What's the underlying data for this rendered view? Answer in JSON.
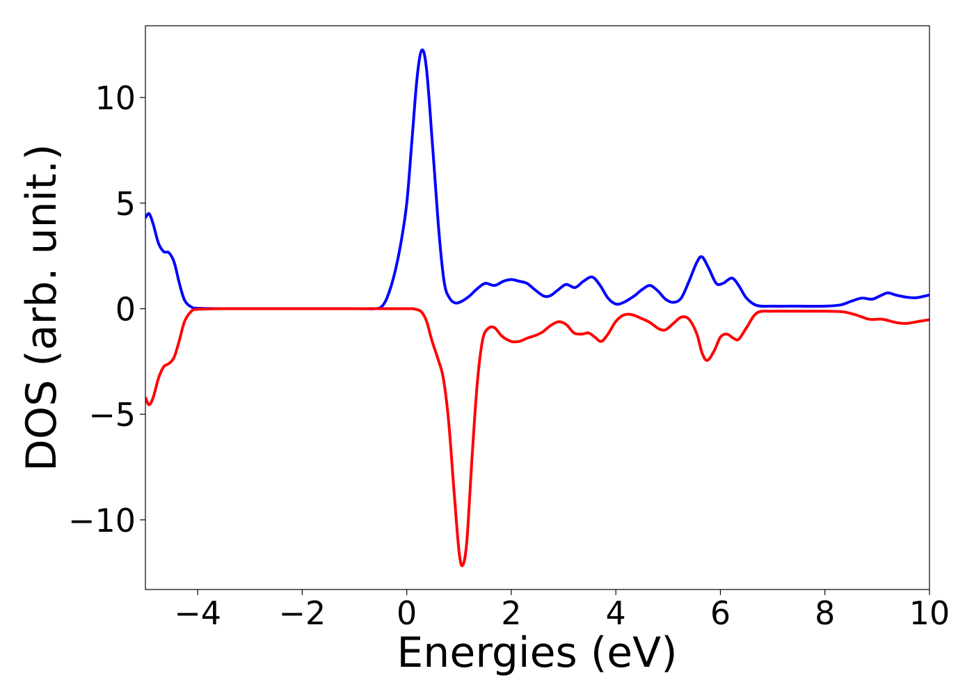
{
  "chart_data": {
    "type": "line",
    "title": "",
    "xlabel": "Energies (eV)",
    "ylabel": "DOS (arb. unit.)",
    "xlim": [
      -5,
      10
    ],
    "ylim": [
      -13.3,
      13.4
    ],
    "xticks": [
      -4,
      -2,
      0,
      2,
      4,
      6,
      8,
      10
    ],
    "yticks": [
      -10,
      -5,
      0,
      5,
      10
    ],
    "grid": false,
    "legend": "none",
    "series": [
      {
        "color": "#0000ff",
        "points": [
          [
            -5.0,
            4.3
          ],
          [
            -4.93,
            4.5
          ],
          [
            -4.85,
            4.0
          ],
          [
            -4.75,
            3.1
          ],
          [
            -4.65,
            2.7
          ],
          [
            -4.55,
            2.65
          ],
          [
            -4.45,
            2.2
          ],
          [
            -4.35,
            1.2
          ],
          [
            -4.25,
            0.4
          ],
          [
            -4.12,
            0.08
          ],
          [
            -4.0,
            0.02
          ],
          [
            -3.5,
            0.0
          ],
          [
            -2.0,
            0.0
          ],
          [
            -1.0,
            0.0
          ],
          [
            -0.6,
            0.0
          ],
          [
            -0.48,
            0.1
          ],
          [
            -0.38,
            0.5
          ],
          [
            -0.25,
            1.5
          ],
          [
            -0.12,
            3.0
          ],
          [
            0.0,
            5.0
          ],
          [
            0.1,
            8.0
          ],
          [
            0.2,
            11.0
          ],
          [
            0.29,
            12.25
          ],
          [
            0.38,
            11.3
          ],
          [
            0.5,
            7.5
          ],
          [
            0.62,
            3.5
          ],
          [
            0.72,
            1.2
          ],
          [
            0.82,
            0.5
          ],
          [
            0.93,
            0.27
          ],
          [
            1.05,
            0.35
          ],
          [
            1.2,
            0.6
          ],
          [
            1.35,
            0.95
          ],
          [
            1.5,
            1.2
          ],
          [
            1.68,
            1.1
          ],
          [
            1.85,
            1.3
          ],
          [
            2.0,
            1.38
          ],
          [
            2.15,
            1.3
          ],
          [
            2.3,
            1.2
          ],
          [
            2.45,
            0.9
          ],
          [
            2.62,
            0.6
          ],
          [
            2.75,
            0.62
          ],
          [
            2.9,
            0.9
          ],
          [
            3.05,
            1.15
          ],
          [
            3.22,
            1.0
          ],
          [
            3.38,
            1.3
          ],
          [
            3.55,
            1.5
          ],
          [
            3.7,
            1.1
          ],
          [
            3.85,
            0.5
          ],
          [
            4.0,
            0.22
          ],
          [
            4.15,
            0.3
          ],
          [
            4.35,
            0.6
          ],
          [
            4.5,
            0.9
          ],
          [
            4.65,
            1.1
          ],
          [
            4.8,
            0.85
          ],
          [
            4.95,
            0.45
          ],
          [
            5.1,
            0.3
          ],
          [
            5.25,
            0.5
          ],
          [
            5.4,
            1.3
          ],
          [
            5.55,
            2.2
          ],
          [
            5.65,
            2.45
          ],
          [
            5.78,
            1.9
          ],
          [
            5.92,
            1.2
          ],
          [
            6.05,
            1.2
          ],
          [
            6.22,
            1.45
          ],
          [
            6.35,
            1.1
          ],
          [
            6.5,
            0.5
          ],
          [
            6.7,
            0.15
          ],
          [
            7.0,
            0.12
          ],
          [
            7.5,
            0.12
          ],
          [
            8.0,
            0.12
          ],
          [
            8.3,
            0.18
          ],
          [
            8.5,
            0.35
          ],
          [
            8.7,
            0.5
          ],
          [
            8.9,
            0.45
          ],
          [
            9.05,
            0.6
          ],
          [
            9.2,
            0.75
          ],
          [
            9.35,
            0.65
          ],
          [
            9.55,
            0.55
          ],
          [
            9.75,
            0.52
          ],
          [
            10.0,
            0.65
          ]
        ]
      },
      {
        "color": "#ff0000",
        "points": [
          [
            -5.0,
            -4.2
          ],
          [
            -4.93,
            -4.55
          ],
          [
            -4.85,
            -4.2
          ],
          [
            -4.75,
            -3.3
          ],
          [
            -4.65,
            -2.75
          ],
          [
            -4.55,
            -2.6
          ],
          [
            -4.45,
            -2.3
          ],
          [
            -4.35,
            -1.5
          ],
          [
            -4.25,
            -0.6
          ],
          [
            -4.12,
            -0.12
          ],
          [
            -4.0,
            -0.03
          ],
          [
            -3.5,
            0.0
          ],
          [
            -2.0,
            0.0
          ],
          [
            -1.0,
            0.0
          ],
          [
            0.0,
            0.0
          ],
          [
            0.15,
            -0.02
          ],
          [
            0.28,
            -0.15
          ],
          [
            0.38,
            -0.6
          ],
          [
            0.48,
            -1.5
          ],
          [
            0.6,
            -2.4
          ],
          [
            0.7,
            -3.3
          ],
          [
            0.8,
            -5.3
          ],
          [
            0.9,
            -8.5
          ],
          [
            1.0,
            -11.5
          ],
          [
            1.07,
            -12.15
          ],
          [
            1.15,
            -11.0
          ],
          [
            1.25,
            -7.0
          ],
          [
            1.35,
            -3.5
          ],
          [
            1.45,
            -1.5
          ],
          [
            1.55,
            -0.95
          ],
          [
            1.68,
            -0.9
          ],
          [
            1.82,
            -1.3
          ],
          [
            2.0,
            -1.55
          ],
          [
            2.15,
            -1.55
          ],
          [
            2.3,
            -1.4
          ],
          [
            2.48,
            -1.25
          ],
          [
            2.6,
            -1.1
          ],
          [
            2.75,
            -0.8
          ],
          [
            2.9,
            -0.62
          ],
          [
            3.05,
            -0.75
          ],
          [
            3.2,
            -1.15
          ],
          [
            3.35,
            -1.2
          ],
          [
            3.48,
            -1.15
          ],
          [
            3.6,
            -1.35
          ],
          [
            3.72,
            -1.55
          ],
          [
            3.85,
            -1.2
          ],
          [
            4.0,
            -0.6
          ],
          [
            4.15,
            -0.3
          ],
          [
            4.3,
            -0.28
          ],
          [
            4.48,
            -0.45
          ],
          [
            4.65,
            -0.65
          ],
          [
            4.82,
            -0.95
          ],
          [
            4.95,
            -1.0
          ],
          [
            5.1,
            -0.7
          ],
          [
            5.25,
            -0.4
          ],
          [
            5.4,
            -0.5
          ],
          [
            5.55,
            -1.2
          ],
          [
            5.65,
            -2.1
          ],
          [
            5.75,
            -2.45
          ],
          [
            5.88,
            -2.0
          ],
          [
            6.0,
            -1.35
          ],
          [
            6.12,
            -1.2
          ],
          [
            6.25,
            -1.4
          ],
          [
            6.35,
            -1.45
          ],
          [
            6.5,
            -0.9
          ],
          [
            6.7,
            -0.2
          ],
          [
            7.0,
            -0.12
          ],
          [
            7.5,
            -0.12
          ],
          [
            8.0,
            -0.12
          ],
          [
            8.35,
            -0.15
          ],
          [
            8.6,
            -0.3
          ],
          [
            8.85,
            -0.5
          ],
          [
            9.1,
            -0.5
          ],
          [
            9.35,
            -0.65
          ],
          [
            9.55,
            -0.7
          ],
          [
            9.8,
            -0.6
          ],
          [
            10.0,
            -0.52
          ]
        ]
      }
    ]
  }
}
